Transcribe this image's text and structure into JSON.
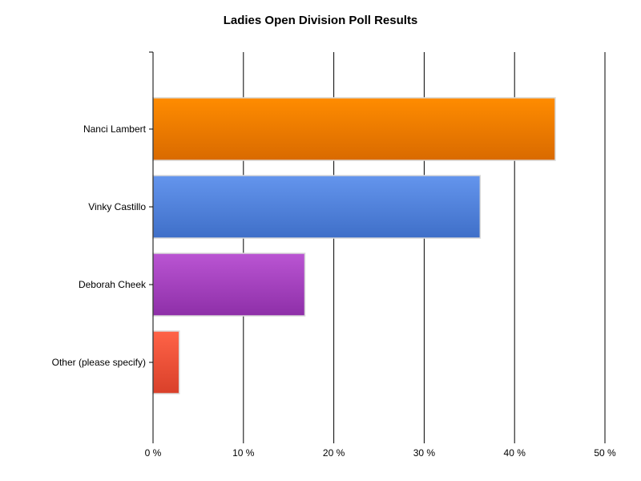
{
  "chart_data": {
    "type": "bar",
    "orientation": "horizontal",
    "title": "Ladies Open Division Poll Results",
    "xlabel": "",
    "ylabel": "",
    "categories": [
      "Nanci Lambert",
      "Vinky Castillo",
      "Deborah Cheek",
      "Other (please specify)"
    ],
    "values": [
      44.5,
      36.2,
      16.8,
      2.9
    ],
    "unit": "%",
    "xlim": [
      0,
      50
    ],
    "xticks": [
      0,
      10,
      20,
      30,
      40,
      50
    ],
    "xtick_labels": [
      "0 %",
      "10 %",
      "20 %",
      "30 %",
      "40 %",
      "50 %"
    ],
    "grid": "vertical",
    "legend": "none",
    "colors": [
      {
        "top": "#ff8c00",
        "bottom": "#d96a00"
      },
      {
        "top": "#6495ed",
        "bottom": "#3f6fc8"
      },
      {
        "top": "#ba55d3",
        "bottom": "#8e2fa8"
      },
      {
        "top": "#ff6347",
        "bottom": "#d9402a"
      }
    ]
  }
}
